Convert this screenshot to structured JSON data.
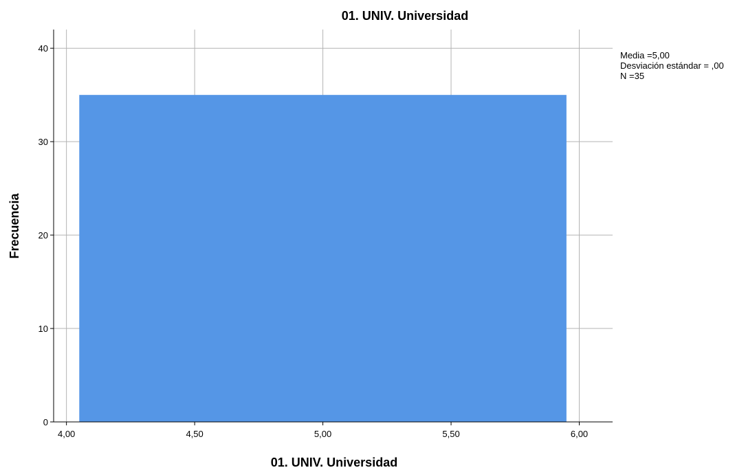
{
  "chart_data": {
    "type": "bar",
    "title": "01. UNIV. Universidad",
    "xlabel": "01. UNIV. Universidad",
    "ylabel": "Frecuencia",
    "xlim": [
      3.95,
      6.13
    ],
    "ylim": [
      0,
      42
    ],
    "x_ticks": [
      {
        "value": 4.0,
        "label": "4,00"
      },
      {
        "value": 4.5,
        "label": "4,50"
      },
      {
        "value": 5.0,
        "label": "5,00"
      },
      {
        "value": 5.5,
        "label": "5,50"
      },
      {
        "value": 6.0,
        "label": "6,00"
      }
    ],
    "y_ticks": [
      {
        "value": 0,
        "label": "0"
      },
      {
        "value": 10,
        "label": "10"
      },
      {
        "value": 20,
        "label": "20"
      },
      {
        "value": 30,
        "label": "30"
      },
      {
        "value": 40,
        "label": "40"
      }
    ],
    "bins": [
      {
        "x0": 4.05,
        "x1": 5.95,
        "value": 35
      }
    ],
    "bar_color": "#5596e6",
    "grid": true,
    "stats_position": "top-right",
    "stats": [
      "Media =5,00",
      "Desviación estándar = ,00",
      "N =35"
    ]
  }
}
